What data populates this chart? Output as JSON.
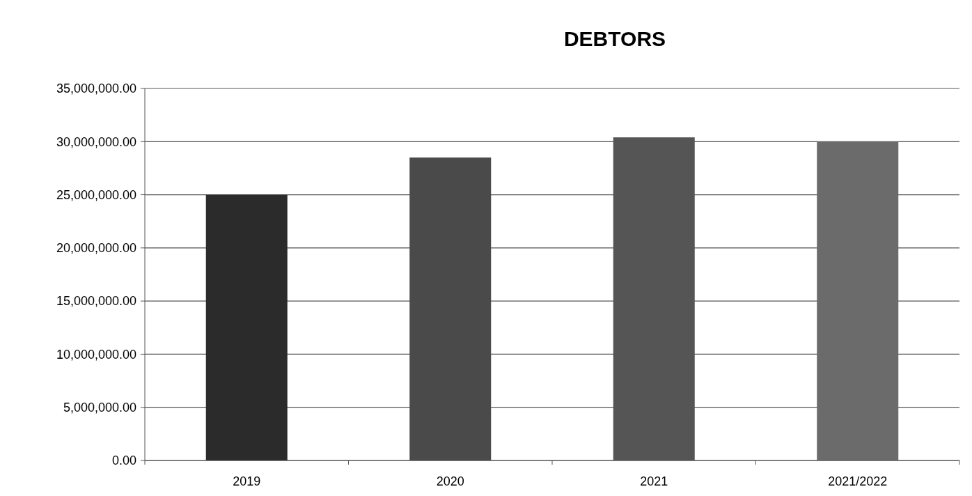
{
  "chart_data": {
    "type": "bar",
    "title": "DEBTORS",
    "categories": [
      "2019",
      "2020",
      "2021",
      "2021/2022"
    ],
    "values": [
      25000000,
      28500000,
      30400000,
      30000000
    ],
    "colors": [
      "#2b2b2b",
      "#4a4a4a",
      "#555555",
      "#6b6b6b"
    ],
    "ylim": [
      0,
      35000000
    ],
    "yticks": [
      {
        "value": 0,
        "label": "0.00"
      },
      {
        "value": 5000000,
        "label": "5,000,000.00"
      },
      {
        "value": 10000000,
        "label": "10,000,000.00"
      },
      {
        "value": 15000000,
        "label": "15,000,000.00"
      },
      {
        "value": 20000000,
        "label": "20,000,000.00"
      },
      {
        "value": 25000000,
        "label": "25,000,000.00"
      },
      {
        "value": 30000000,
        "label": "30,000,000.00"
      },
      {
        "value": 35000000,
        "label": "35,000,000.00"
      }
    ],
    "grid": "y"
  }
}
